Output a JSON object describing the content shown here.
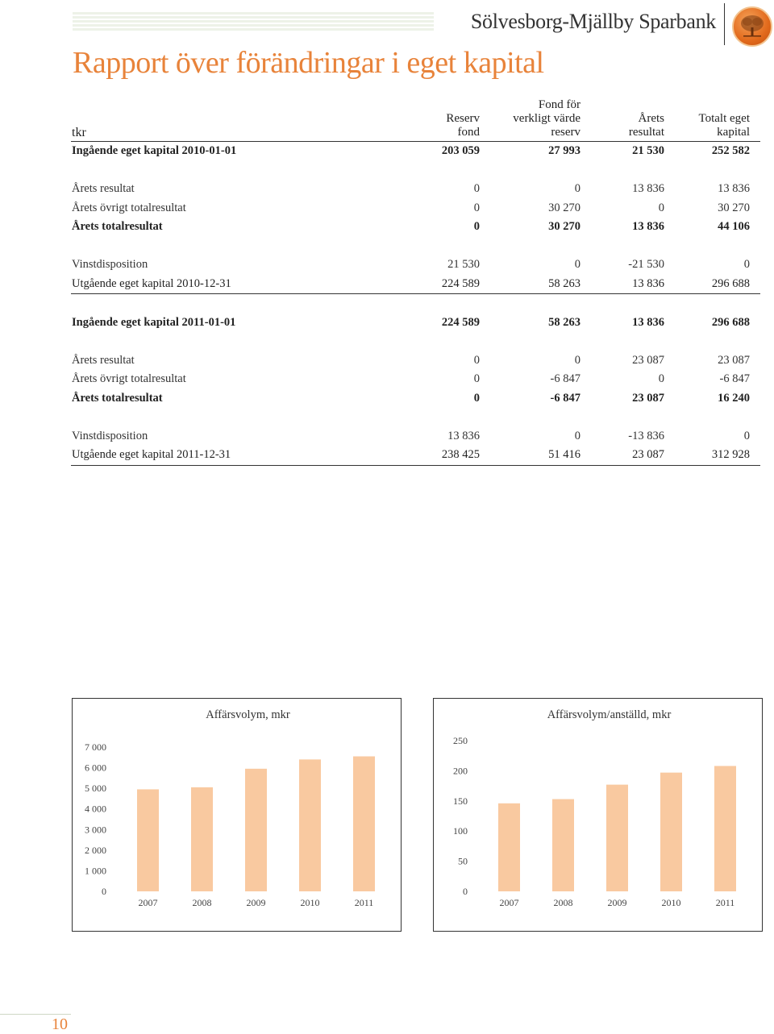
{
  "header": {
    "brand": "Sölvesborg-Mjällby Sparbank",
    "title": "Rapport över förändringar i eget kapital"
  },
  "table": {
    "unit_label": "tkr",
    "columns": [
      "Reserv fond",
      "Fond för verkligt värde reserv",
      "Årets resultat",
      "Totalt eget kapital"
    ],
    "rows": [
      {
        "label": "Ingående eget kapital 2010-01-01",
        "values": [
          "203 059",
          "27 993",
          "21 530",
          "252 582"
        ],
        "style": "bold"
      },
      {
        "label": "Årets resultat",
        "values": [
          "0",
          "0",
          "13 836",
          "13 836"
        ],
        "style": "normal"
      },
      {
        "label": "Årets övrigt totalresultat",
        "values": [
          "0",
          "30 270",
          "0",
          "30 270"
        ],
        "style": "normal"
      },
      {
        "label": "Årets totalresultat",
        "values": [
          "0",
          "30 270",
          "13 836",
          "44 106"
        ],
        "style": "bold"
      },
      {
        "label": "Vinstdisposition",
        "values": [
          "21 530",
          "0",
          "-21 530",
          "0"
        ],
        "style": "normal"
      },
      {
        "label": "Utgående eget kapital 2010-12-31",
        "values": [
          "224 589",
          "58 263",
          "13 836",
          "296 688"
        ],
        "style": "bold"
      },
      {
        "label": "Ingående eget kapital 2011-01-01",
        "values": [
          "224 589",
          "58 263",
          "13 836",
          "296 688"
        ],
        "style": "bold"
      },
      {
        "label": "Årets resultat",
        "values": [
          "0",
          "0",
          "23 087",
          "23 087"
        ],
        "style": "normal"
      },
      {
        "label": "Årets övrigt totalresultat",
        "values": [
          "0",
          "-6 847",
          "0",
          "-6 847"
        ],
        "style": "normal"
      },
      {
        "label": "Årets totalresultat",
        "values": [
          "0",
          "-6 847",
          "23 087",
          "16 240"
        ],
        "style": "bold"
      },
      {
        "label": "Vinstdisposition",
        "values": [
          "13 836",
          "0",
          "-13 836",
          "0"
        ],
        "style": "normal"
      },
      {
        "label": "Utgående eget kapital 2011-12-31",
        "values": [
          "238 425",
          "51 416",
          "23 087",
          "312 928"
        ],
        "style": "bold"
      }
    ]
  },
  "chart_data": [
    {
      "type": "bar",
      "title": "Affärsvolym, mkr",
      "categories": [
        "2007",
        "2008",
        "2009",
        "2010",
        "2011"
      ],
      "values": [
        4950,
        5050,
        5950,
        6400,
        6550
      ],
      "ylim": [
        0,
        7000
      ],
      "yticks": [
        0,
        1000,
        2000,
        3000,
        4000,
        5000,
        6000,
        7000
      ],
      "ytick_labels": [
        "0",
        "1 000",
        "2 000",
        "3 000",
        "4 000",
        "5 000",
        "6 000",
        "7 000"
      ],
      "grid": false,
      "bar_color": "#f9c9a0"
    },
    {
      "type": "bar",
      "title": "Affärsvolym/anställd, mkr",
      "categories": [
        "2007",
        "2008",
        "2009",
        "2010",
        "2011"
      ],
      "values": [
        146,
        153,
        177,
        197,
        208
      ],
      "ylim": [
        0,
        250
      ],
      "yticks": [
        0,
        50,
        100,
        150,
        200,
        250
      ],
      "ytick_labels": [
        "0",
        "50",
        "100",
        "150",
        "200",
        "250"
      ],
      "grid": false,
      "bar_color": "#f9c9a0"
    }
  ],
  "footer": {
    "page_number": "10"
  },
  "colors": {
    "accent": "#e8833a",
    "bar": "#f9c9a0"
  },
  "icons": {
    "logo": "oak-tree-logo-icon"
  }
}
